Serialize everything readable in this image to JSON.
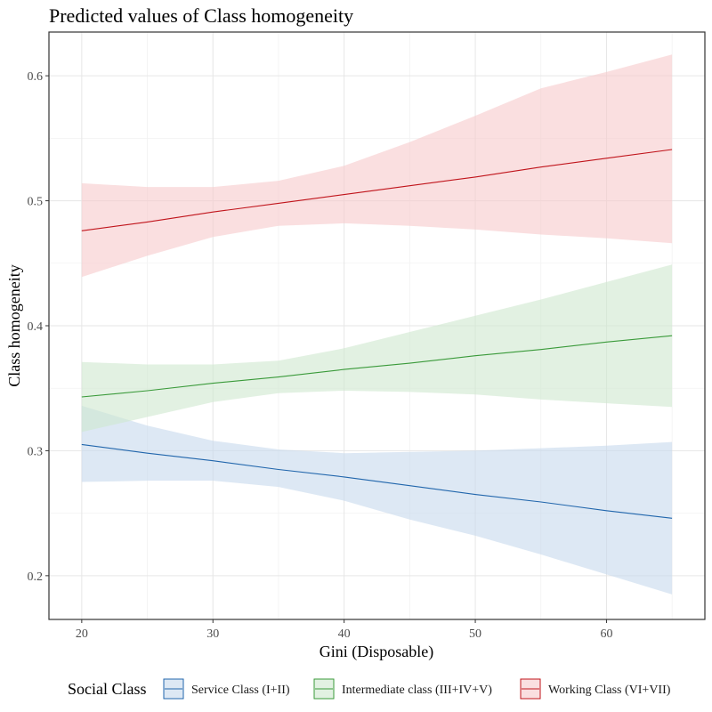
{
  "chart_data": {
    "type": "line",
    "title": "Predicted values of Class homogeneity",
    "xlabel": "Gini (Disposable)",
    "ylabel": "Class homogeneity",
    "xlim": [
      17.5,
      67.5
    ],
    "ylim": [
      0.165,
      0.635
    ],
    "xticks": [
      20,
      30,
      40,
      50,
      60
    ],
    "xticks_minor": [
      25,
      35,
      45,
      55,
      65
    ],
    "yticks": [
      0.2,
      0.3,
      0.4,
      0.5,
      0.6
    ],
    "yticks_minor": [
      0.25,
      0.35,
      0.45,
      0.55
    ],
    "xtick_labels": [
      "20",
      "30",
      "40",
      "50",
      "60"
    ],
    "ytick_labels": [
      "0.2",
      "0.3",
      "0.4",
      "0.5",
      "0.6"
    ],
    "grid": true,
    "legend": {
      "title": "Social Class",
      "position": "bottom"
    },
    "series": [
      {
        "name": "Service Class (I+II)",
        "color": "#2166ac",
        "fill": "#c6d9ec",
        "x": [
          20,
          25,
          30,
          35,
          40,
          45,
          50,
          55,
          60,
          65
        ],
        "y": [
          0.305,
          0.298,
          0.292,
          0.285,
          0.279,
          0.272,
          0.265,
          0.259,
          0.252,
          0.246
        ],
        "lower": [
          0.275,
          0.276,
          0.276,
          0.271,
          0.26,
          0.245,
          0.232,
          0.217,
          0.201,
          0.185
        ],
        "upper": [
          0.336,
          0.32,
          0.308,
          0.301,
          0.298,
          0.299,
          0.3,
          0.302,
          0.304,
          0.307
        ]
      },
      {
        "name": "Intermediate class (III+IV+V)",
        "color": "#3a9a3a",
        "fill": "#cfe8cf",
        "x": [
          20,
          25,
          30,
          35,
          40,
          45,
          50,
          55,
          60,
          65
        ],
        "y": [
          0.343,
          0.348,
          0.354,
          0.359,
          0.365,
          0.37,
          0.376,
          0.381,
          0.387,
          0.392
        ],
        "lower": [
          0.315,
          0.327,
          0.339,
          0.346,
          0.348,
          0.347,
          0.345,
          0.341,
          0.338,
          0.335
        ],
        "upper": [
          0.371,
          0.369,
          0.369,
          0.372,
          0.382,
          0.395,
          0.408,
          0.421,
          0.435,
          0.449
        ]
      },
      {
        "name": "Working Class (VI+VII)",
        "color": "#c0141b",
        "fill": "#f7c9cc",
        "x": [
          20,
          25,
          30,
          35,
          40,
          45,
          50,
          55,
          60,
          65
        ],
        "y": [
          0.476,
          0.483,
          0.491,
          0.498,
          0.505,
          0.512,
          0.519,
          0.527,
          0.534,
          0.541
        ],
        "lower": [
          0.439,
          0.456,
          0.471,
          0.48,
          0.482,
          0.48,
          0.477,
          0.473,
          0.47,
          0.466
        ],
        "upper": [
          0.514,
          0.511,
          0.511,
          0.516,
          0.528,
          0.547,
          0.568,
          0.59,
          0.603,
          0.617
        ]
      }
    ]
  }
}
